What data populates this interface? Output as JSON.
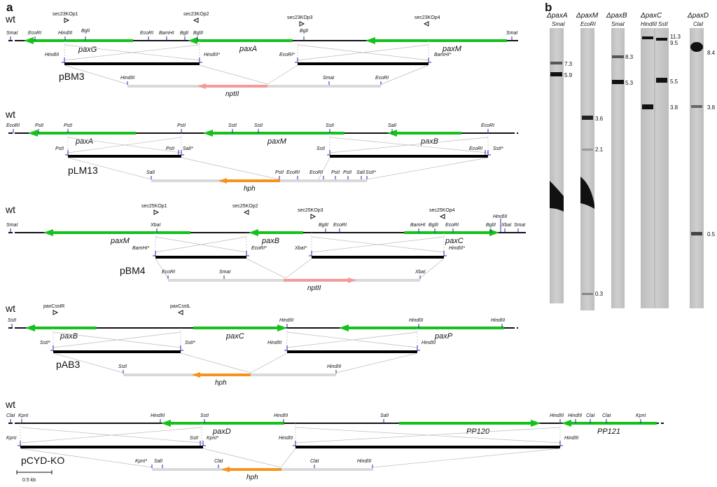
{
  "panel_a_label": "a",
  "panel_b_label": "b",
  "scale_bar_label": "0.5 kb",
  "colors": {
    "gene": "#16c11c",
    "nptII": "#f59a9a",
    "hph": "#f7931d",
    "backbone": "#d9d9d9",
    "insert": "#000000",
    "site_tick": "#2424b0"
  },
  "constructs": [
    {
      "id": "pBM3",
      "wt_label": "wt",
      "plasmid_label": "pBM3",
      "primers": [
        "sec23KOp1",
        "sec23KOp2",
        "sec23KOp3",
        "sec23KOp4"
      ],
      "wt_sites": [
        "SmaI",
        "EcoRI",
        "HindIII",
        "BglI",
        "EcoRI",
        "BamHI",
        "BglI",
        "BglII",
        "BglI",
        "SmaI"
      ],
      "genes": [
        "paxG",
        "paxA",
        "paxM"
      ],
      "insert_sites": [
        "HindIII",
        "HindIII*",
        "EcoRI*",
        "BamHI*"
      ],
      "vector_sites": [
        "HindIII",
        "SmaI",
        "EcoRI"
      ],
      "marker": "nptII"
    },
    {
      "id": "pLM13",
      "wt_label": "wt",
      "plasmid_label": "pLM13",
      "wt_sites": [
        "EcoRI",
        "PstI",
        "PstI",
        "PstI",
        "SstI",
        "SstI",
        "SstI",
        "SalI",
        "EcoRI"
      ],
      "genes": [
        "paxA",
        "paxM",
        "paxB"
      ],
      "insert_sites": [
        "PstI",
        "PstI",
        "SalI*",
        "SstI",
        "EcoRI",
        "SstI*"
      ],
      "vector_sites": [
        "SalI",
        "PstI",
        "EcoRI",
        "EcoRI",
        "PstI",
        "PstI",
        "SalI",
        "SstI*"
      ],
      "marker": "hph"
    },
    {
      "id": "pBM4",
      "wt_label": "wt",
      "plasmid_label": "pBM4",
      "primers": [
        "sec25KOp1",
        "sec25KOp2",
        "sec25KOp3",
        "sec25KOp4"
      ],
      "wt_sites": [
        "SmaI",
        "XbaI",
        "BglII",
        "EcoRI",
        "BamHI",
        "BglII",
        "EcoRI",
        "HindIII",
        "BglII",
        "XbaI",
        "SmaI"
      ],
      "genes": [
        "paxM",
        "paxB",
        "paxC"
      ],
      "insert_sites": [
        "BamHI*",
        "EcoRI*",
        "XbaI*",
        "HindIII*"
      ],
      "vector_sites": [
        "EcoRI",
        "SmaI",
        "XbaI"
      ],
      "marker": "nptII"
    },
    {
      "id": "pAB3",
      "wt_label": "wt",
      "plasmid_label": "pAB3",
      "primers": [
        "paxCsstR",
        "paxCsstL"
      ],
      "wt_sites": [
        "SstI",
        "HindIII",
        "HindIII",
        "HindIII"
      ],
      "genes": [
        "paxB",
        "paxC",
        "paxP"
      ],
      "insert_sites": [
        "SstI*",
        "SstI*",
        "HindIII",
        "HindIII"
      ],
      "vector_sites": [
        "SstI",
        "HindIII"
      ],
      "marker": "hph"
    },
    {
      "id": "pCYD-KO",
      "wt_label": "wt",
      "plasmid_label": "pCYD-KO",
      "wt_sites": [
        "ClaI",
        "KpnI",
        "HindIII",
        "SstI",
        "HindIII",
        "SalI",
        "HindIII",
        "HindIII",
        "ClaI",
        "ClaI",
        "KpnI"
      ],
      "genes": [
        "paxD",
        "PP120",
        "PP121"
      ],
      "insert_sites": [
        "KpnI",
        "SstI",
        "KpnI*",
        "HindIII",
        "HindIII"
      ],
      "vector_sites": [
        "KpnI*",
        "SalI",
        "ClaI",
        "ClaI",
        "HindIII"
      ],
      "marker": "hph"
    }
  ],
  "blots": [
    {
      "gene": "ΔpaxA",
      "enzymes": [
        "SmaI"
      ],
      "sizes": [
        "7.3",
        "5.9"
      ]
    },
    {
      "gene": "ΔpaxM",
      "enzymes": [
        "EcoRI"
      ],
      "sizes": [
        "3.6",
        "2.1",
        "0.3"
      ]
    },
    {
      "gene": "ΔpaxB",
      "enzymes": [
        "SmaI"
      ],
      "sizes": [
        "8.3",
        "5.3"
      ]
    },
    {
      "gene": "ΔpaxC",
      "enzymes": [
        "HindIII",
        "SstI"
      ],
      "sizes": [
        "11.3",
        "9.5",
        "5.5",
        "3.8"
      ]
    },
    {
      "gene": "ΔpaxD",
      "enzymes": [
        "ClaI"
      ],
      "sizes": [
        "8.4",
        "3.8",
        "0.5"
      ]
    }
  ]
}
